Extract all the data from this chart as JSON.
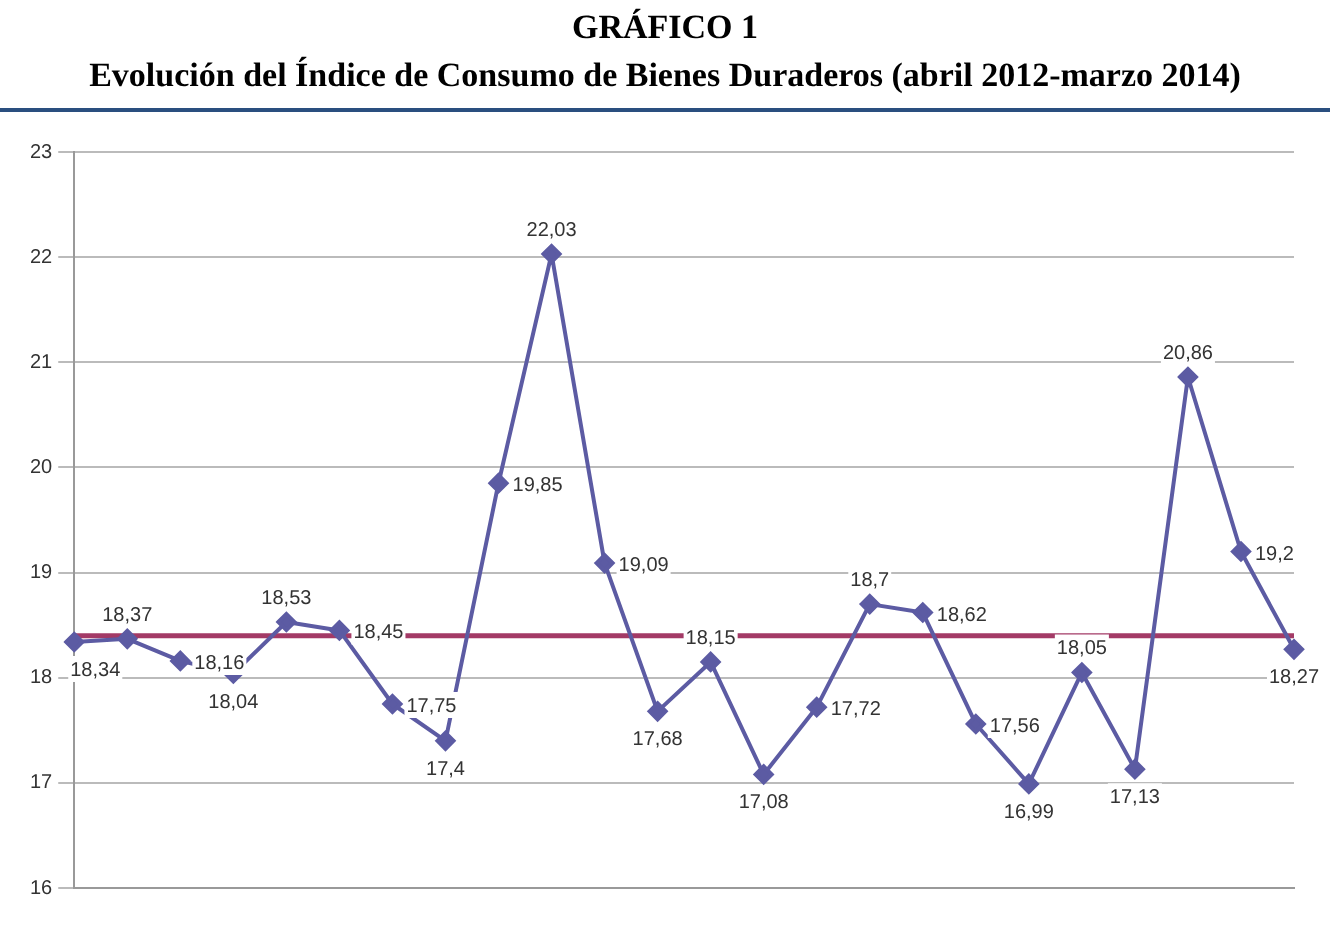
{
  "chart_data": {
    "type": "line",
    "title": "GRÁFICO 1",
    "subtitle": "Evolución del Índice de Consumo de Bienes Duraderos (abril 2012-marzo 2014)",
    "categories": [
      null,
      null,
      null,
      null,
      null,
      null,
      null,
      null,
      null,
      null,
      null,
      null,
      null,
      null,
      null,
      null,
      null,
      null,
      null,
      null,
      null,
      null,
      null,
      null
    ],
    "series": [
      {
        "color": "#5c5ba3",
        "values": [
          18.34,
          18.37,
          18.16,
          18.04,
          18.53,
          18.45,
          17.75,
          17.4,
          19.85,
          22.03,
          19.09,
          17.68,
          18.15,
          17.08,
          17.72,
          18.7,
          18.62,
          17.56,
          16.99,
          18.05,
          17.13,
          20.86,
          19.2,
          18.27
        ],
        "value_labels": [
          "18,34",
          "18,37",
          "18,16",
          "18,04",
          "18,53",
          "18,45",
          "17,75",
          "17,4",
          "19,85",
          "22,03",
          "19,09",
          "17,68",
          "18,15",
          "17,08",
          "17,72",
          "18,7",
          "18,62",
          "17,56",
          "16,99",
          "18,05",
          "17,13",
          "20,86",
          "19,2",
          "18,27"
        ]
      }
    ],
    "ylim": [
      16,
      23
    ],
    "yticks": [
      16,
      17,
      18,
      19,
      20,
      21,
      22,
      23
    ],
    "grid": "y",
    "legend": false,
    "tick_labels": "y",
    "marker": "diamond",
    "line_style": "solid",
    "ref_lines": [
      {
        "axis": "y",
        "value": 18.4,
        "color": "#a33a66"
      }
    ]
  }
}
